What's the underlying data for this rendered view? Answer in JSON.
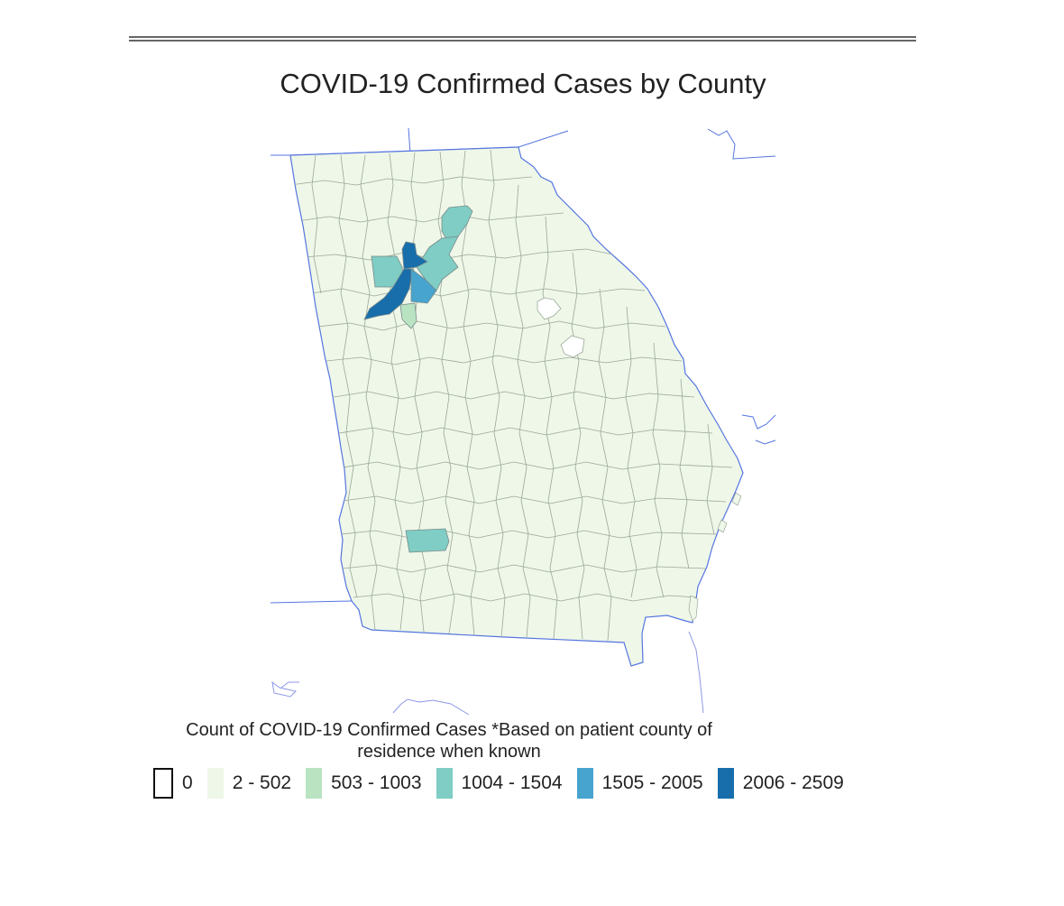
{
  "title": "COVID-19 Confirmed Cases by County",
  "legend": {
    "title_line1": "Count of COVID-19 Confirmed Cases *Based on patient county of",
    "title_line2": "residence when known",
    "bins": [
      {
        "label": "0",
        "color": "#ffffff",
        "outlined": true
      },
      {
        "label": "2 - 502",
        "color": "#eef7e8"
      },
      {
        "label": "503 - 1003",
        "color": "#b9e3c1"
      },
      {
        "label": "1004 - 1504",
        "color": "#7fcdc4"
      },
      {
        "label": "1505 - 2005",
        "color": "#47a4cf"
      },
      {
        "label": "2006 - 2509",
        "color": "#176eab"
      }
    ]
  },
  "colors": {
    "border_line": "#5575e0",
    "county_line": "#8c9a8c",
    "county_fill": "#eef7e8"
  }
}
